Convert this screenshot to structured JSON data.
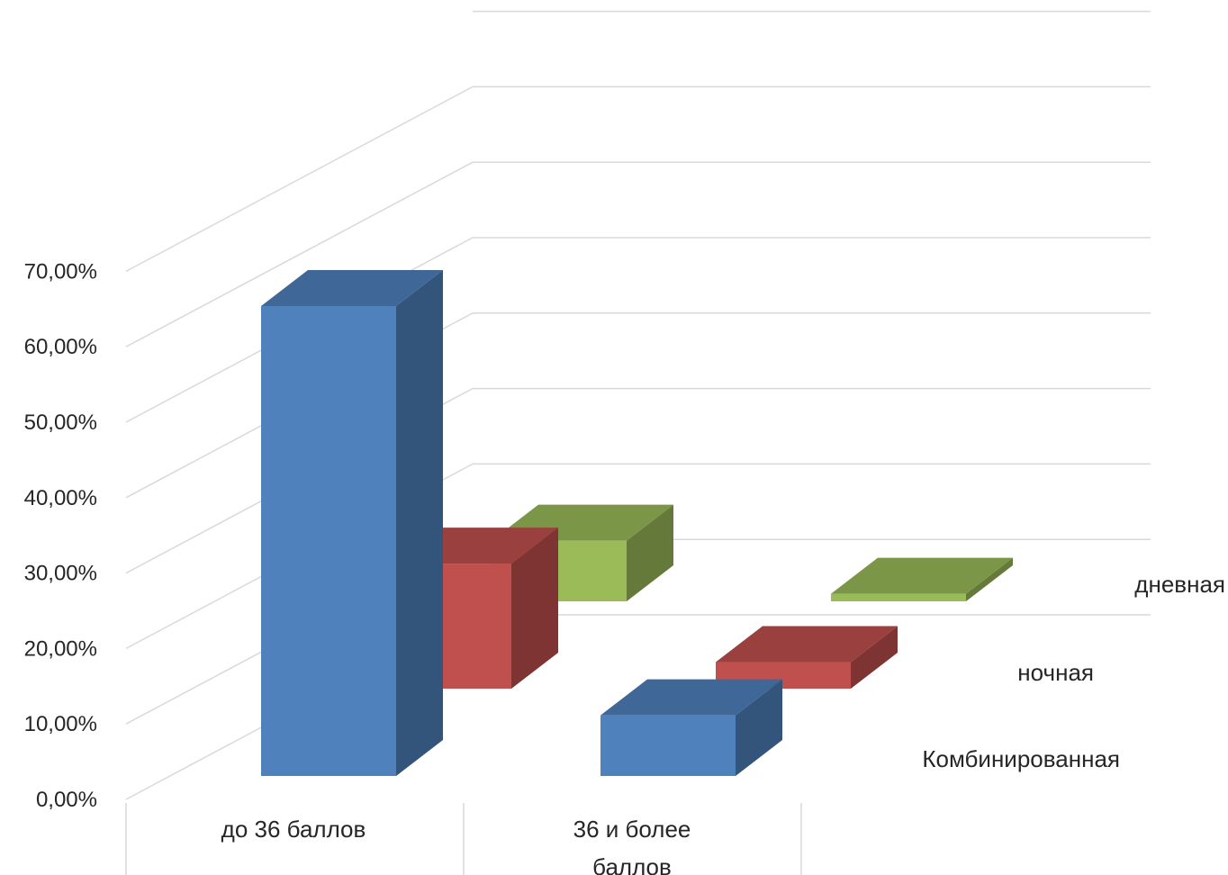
{
  "chart_data": {
    "type": "bar",
    "style": "3d-column",
    "title": "",
    "xlabel": "",
    "ylabel": "",
    "categories": [
      "до 36 баллов",
      "36 и более баллов"
    ],
    "category_lines": [
      [
        "до 36 баллов"
      ],
      [
        "36 и более",
        "баллов"
      ]
    ],
    "y_ticks": [
      "0,00%",
      "10,00%",
      "20,00%",
      "30,00%",
      "40,00%",
      "50,00%",
      "60,00%",
      "70,00%"
    ],
    "ylim": [
      0,
      70
    ],
    "series": [
      {
        "name": "Комбинированная",
        "values": [
          62.0,
          8.0
        ],
        "color": "#4f81bd"
      },
      {
        "name": "ночная",
        "values": [
          16.5,
          3.5
        ],
        "color": "#c0504d"
      },
      {
        "name": "дневная",
        "values": [
          8.0,
          1.0
        ],
        "color": "#9bbb59"
      }
    ],
    "grid": true,
    "legend": "series labels along depth axis (right)"
  }
}
